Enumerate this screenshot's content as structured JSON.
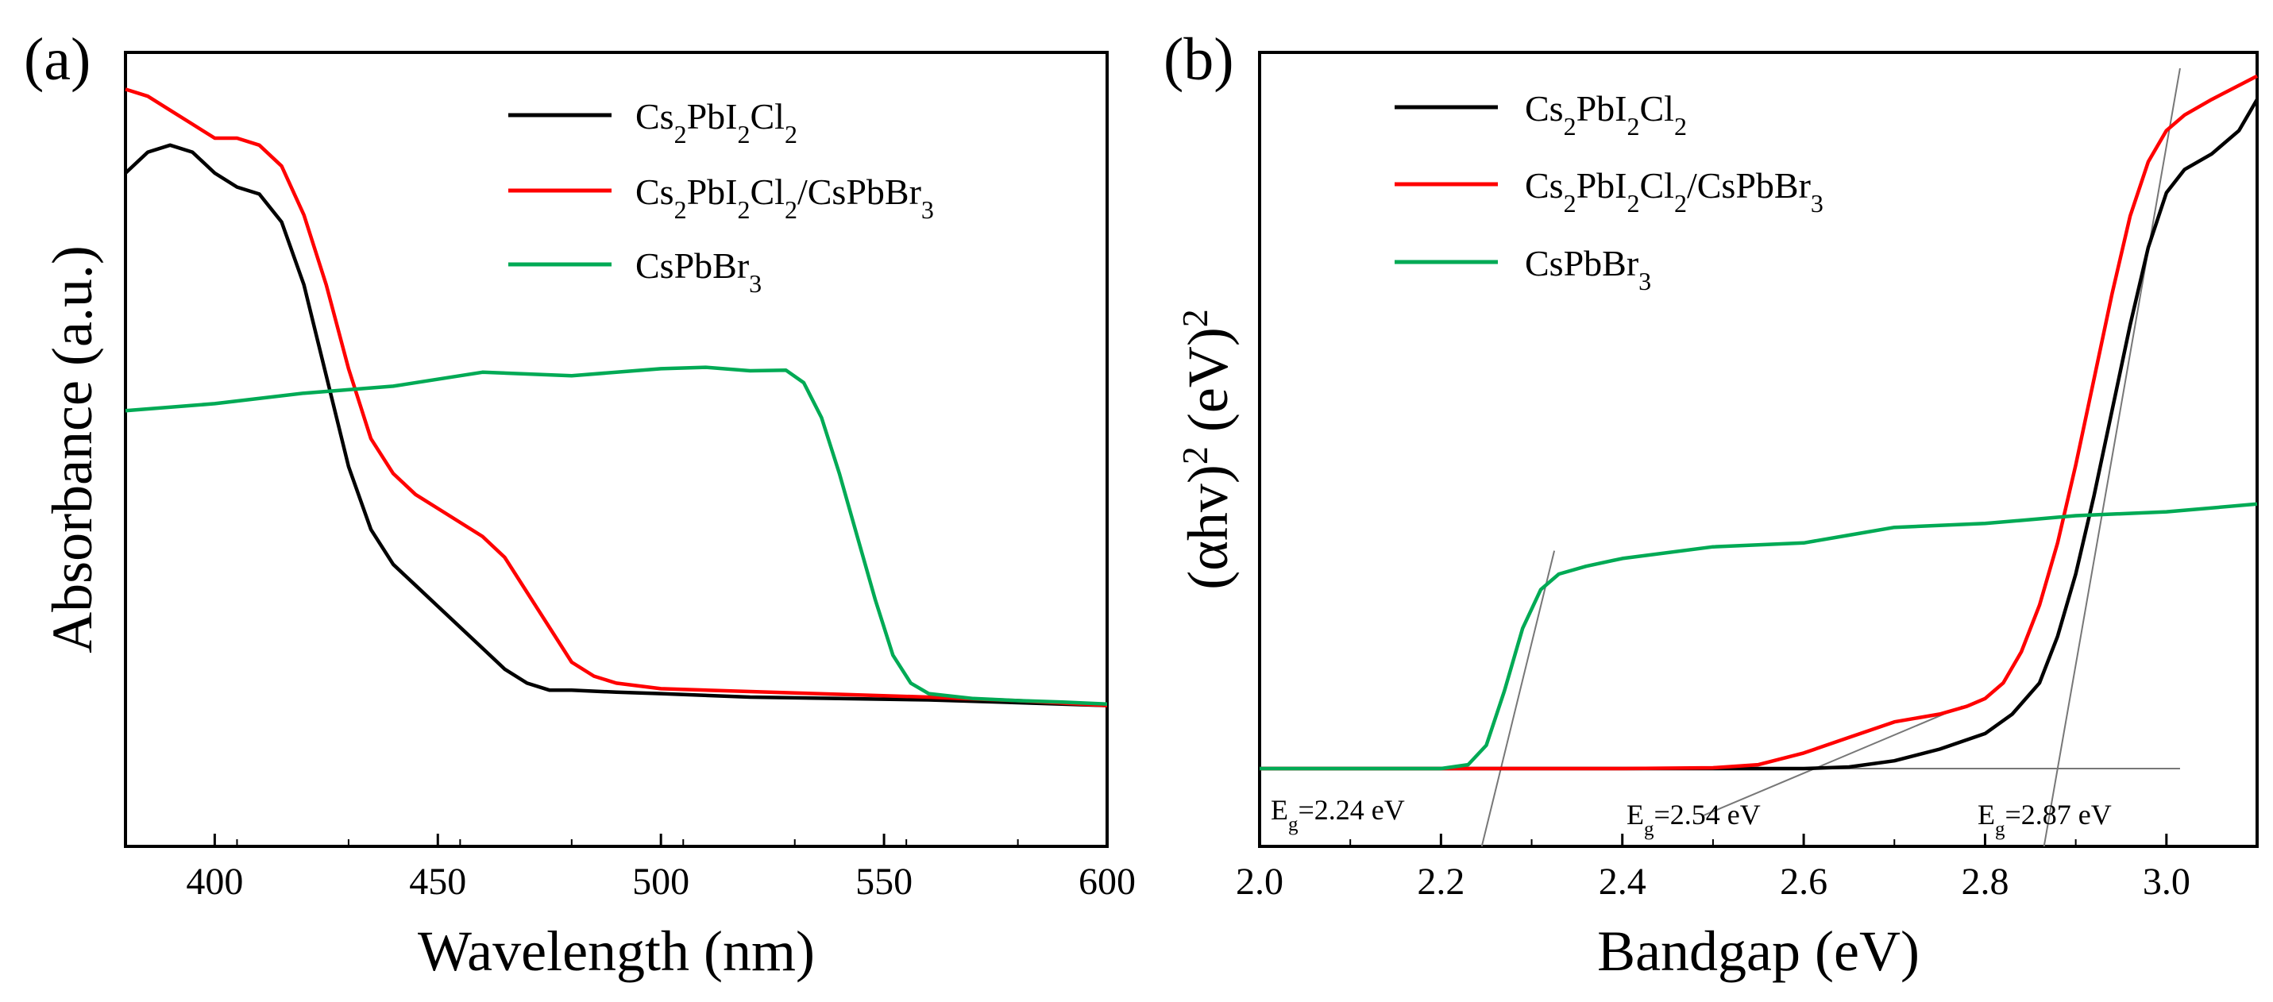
{
  "chart_data": [
    {
      "panel": "a",
      "type": "line",
      "title": "",
      "xlabel": "Wavelength (nm)",
      "ylabel": "Absorbance (a.u.)",
      "xlim": [
        380,
        600
      ],
      "ylim": [
        0,
        1
      ],
      "xticks": [
        400,
        450,
        500,
        550,
        600
      ],
      "legend": "top-right",
      "series": [
        {
          "name": "Cs2PbI2Cl2",
          "color": "#000000",
          "x": [
            380,
            385,
            390,
            395,
            400,
            405,
            410,
            415,
            420,
            425,
            430,
            435,
            440,
            445,
            450,
            455,
            460,
            465,
            470,
            475,
            480,
            490,
            500,
            520,
            540,
            560,
            580,
            600
          ],
          "y": [
            0.85,
            0.88,
            0.89,
            0.88,
            0.85,
            0.83,
            0.82,
            0.78,
            0.69,
            0.56,
            0.43,
            0.34,
            0.29,
            0.26,
            0.23,
            0.2,
            0.17,
            0.14,
            0.12,
            0.11,
            0.11,
            0.107,
            0.105,
            0.1,
            0.098,
            0.096,
            0.092,
            0.088
          ]
        },
        {
          "name": "Cs2PbI2Cl2/CsPbBr3",
          "color": "#ff0000",
          "x": [
            380,
            385,
            390,
            395,
            400,
            405,
            410,
            415,
            420,
            425,
            430,
            435,
            440,
            445,
            450,
            455,
            460,
            465,
            470,
            475,
            480,
            485,
            490,
            500,
            520,
            540,
            560,
            580,
            600
          ],
          "y": [
            0.97,
            0.96,
            0.94,
            0.92,
            0.9,
            0.9,
            0.89,
            0.86,
            0.79,
            0.69,
            0.57,
            0.47,
            0.42,
            0.39,
            0.37,
            0.35,
            0.33,
            0.3,
            0.25,
            0.2,
            0.15,
            0.13,
            0.12,
            0.112,
            0.108,
            0.104,
            0.1,
            0.095,
            0.088
          ]
        },
        {
          "name": "CsPbBr3",
          "color": "#00aa55",
          "x": [
            380,
            400,
            420,
            440,
            460,
            480,
            500,
            510,
            520,
            528,
            532,
            536,
            540,
            544,
            548,
            552,
            556,
            560,
            570,
            580,
            590,
            600
          ],
          "y": [
            0.51,
            0.52,
            0.535,
            0.545,
            0.565,
            0.56,
            0.57,
            0.572,
            0.567,
            0.568,
            0.55,
            0.5,
            0.42,
            0.33,
            0.24,
            0.16,
            0.12,
            0.105,
            0.098,
            0.095,
            0.093,
            0.09
          ]
        }
      ]
    },
    {
      "panel": "b",
      "type": "line",
      "title": "",
      "xlabel": "Bandgap (eV)",
      "ylabel": "(αhv)² (eV)²",
      "xlim": [
        2.0,
        3.1
      ],
      "ylim": [
        0,
        1
      ],
      "xticks": [
        2.0,
        2.2,
        2.4,
        2.6,
        2.8,
        3.0
      ],
      "legend": "top-left",
      "series": [
        {
          "name": "Cs2PbI2Cl2",
          "color": "#000000",
          "x": [
            2.0,
            2.2,
            2.4,
            2.6,
            2.65,
            2.7,
            2.75,
            2.8,
            2.83,
            2.86,
            2.88,
            2.9,
            2.92,
            2.94,
            2.96,
            2.98,
            3.0,
            3.02,
            3.05,
            3.08,
            3.1
          ],
          "y": [
            0.1,
            0.1,
            0.1,
            0.1,
            0.102,
            0.11,
            0.125,
            0.145,
            0.17,
            0.21,
            0.27,
            0.35,
            0.45,
            0.56,
            0.67,
            0.77,
            0.84,
            0.87,
            0.89,
            0.92,
            0.96
          ]
        },
        {
          "name": "Cs2PbI2Cl2/CsPbBr3",
          "color": "#ff0000",
          "x": [
            2.0,
            2.4,
            2.5,
            2.55,
            2.6,
            2.65,
            2.7,
            2.75,
            2.78,
            2.8,
            2.82,
            2.84,
            2.86,
            2.88,
            2.9,
            2.92,
            2.94,
            2.96,
            2.98,
            3.0,
            3.02,
            3.05,
            3.1
          ],
          "y": [
            0.1,
            0.1,
            0.101,
            0.105,
            0.12,
            0.14,
            0.16,
            0.17,
            0.18,
            0.19,
            0.21,
            0.25,
            0.31,
            0.39,
            0.49,
            0.6,
            0.71,
            0.81,
            0.88,
            0.92,
            0.94,
            0.96,
            0.99
          ]
        },
        {
          "name": "CsPbBr3",
          "color": "#00aa55",
          "x": [
            2.0,
            2.2,
            2.23,
            2.25,
            2.27,
            2.29,
            2.31,
            2.33,
            2.36,
            2.4,
            2.5,
            2.6,
            2.65,
            2.7,
            2.8,
            2.9,
            3.0,
            3.1
          ],
          "y": [
            0.1,
            0.1,
            0.105,
            0.13,
            0.2,
            0.28,
            0.33,
            0.35,
            0.36,
            0.37,
            0.385,
            0.39,
            0.4,
            0.41,
            0.415,
            0.425,
            0.43,
            0.44
          ]
        }
      ],
      "tangent_lines": [
        {
          "x": [
            2.245,
            2.325
          ],
          "y": [
            0.0,
            0.38
          ]
        },
        {
          "x": [
            2.49,
            2.775
          ],
          "y": [
            0.04,
            0.18
          ]
        },
        {
          "x": [
            2.865,
            3.015
          ],
          "y": [
            0.0,
            1.0
          ]
        },
        {
          "x": [
            2.0,
            3.015
          ],
          "y": [
            0.1,
            0.1
          ]
        }
      ],
      "annotations": [
        {
          "label": "Eg=2.24 eV",
          "sub_base": "E",
          "sub": "g",
          "rest": "=2.24 eV"
        },
        {
          "label": "Eg=2.54 eV",
          "sub_base": "E",
          "sub": "g",
          "rest": "=2.54 eV"
        },
        {
          "label": "Eg=2.87 eV",
          "sub_base": "E",
          "sub": "g",
          "rest": "=2.87 eV"
        }
      ]
    }
  ],
  "panel_labels": [
    "(a)",
    "(b)"
  ]
}
